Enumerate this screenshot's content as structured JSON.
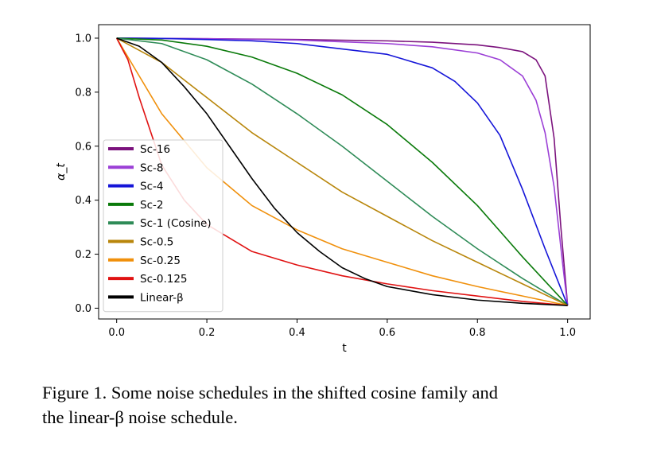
{
  "chart_data": {
    "type": "line",
    "xlabel": "t",
    "ylabel": "α_t",
    "xlim": [
      -0.04,
      1.05
    ],
    "ylim": [
      -0.04,
      1.05
    ],
    "xticks": [
      "0.0",
      "0.2",
      "0.4",
      "0.6",
      "0.8",
      "1.0"
    ],
    "yticks": [
      "0.0",
      "0.2",
      "0.4",
      "0.6",
      "0.8",
      "1.0"
    ],
    "grid": false,
    "legend_position": "lower-left",
    "series": [
      {
        "name": "Sc-16",
        "color": "#7b127d",
        "x": [
          0,
          0.2,
          0.4,
          0.6,
          0.7,
          0.8,
          0.85,
          0.9,
          0.93,
          0.95,
          0.97,
          0.985,
          1.0
        ],
        "y": [
          1.0,
          0.998,
          0.995,
          0.99,
          0.985,
          0.975,
          0.965,
          0.95,
          0.92,
          0.86,
          0.63,
          0.3,
          0.01
        ]
      },
      {
        "name": "Sc-8",
        "color": "#9b3fd6",
        "x": [
          0,
          0.2,
          0.4,
          0.6,
          0.7,
          0.8,
          0.85,
          0.9,
          0.93,
          0.95,
          0.97,
          0.99,
          1.0
        ],
        "y": [
          1.0,
          0.998,
          0.993,
          0.98,
          0.968,
          0.945,
          0.92,
          0.86,
          0.77,
          0.65,
          0.45,
          0.15,
          0.01
        ]
      },
      {
        "name": "Sc-4",
        "color": "#1515d8",
        "x": [
          0,
          0.1,
          0.2,
          0.3,
          0.4,
          0.5,
          0.6,
          0.7,
          0.75,
          0.8,
          0.85,
          0.9,
          0.95,
          1.0
        ],
        "y": [
          1.0,
          0.999,
          0.995,
          0.99,
          0.98,
          0.96,
          0.94,
          0.89,
          0.84,
          0.76,
          0.64,
          0.44,
          0.22,
          0.01
        ]
      },
      {
        "name": "Sc-2",
        "color": "#0a7a0a",
        "x": [
          0,
          0.1,
          0.2,
          0.3,
          0.4,
          0.5,
          0.6,
          0.7,
          0.8,
          0.9,
          1.0
        ],
        "y": [
          1.0,
          0.993,
          0.97,
          0.93,
          0.87,
          0.79,
          0.68,
          0.54,
          0.38,
          0.19,
          0.01
        ]
      },
      {
        "name": "Sc-1 (Cosine)",
        "color": "#2e8b57",
        "x": [
          0,
          0.1,
          0.2,
          0.3,
          0.4,
          0.5,
          0.6,
          0.7,
          0.8,
          0.9,
          1.0
        ],
        "y": [
          1.0,
          0.98,
          0.92,
          0.83,
          0.72,
          0.6,
          0.47,
          0.34,
          0.22,
          0.11,
          0.01
        ]
      },
      {
        "name": "Sc-0.5",
        "color": "#b8860b",
        "x": [
          0,
          0.1,
          0.2,
          0.3,
          0.4,
          0.5,
          0.6,
          0.7,
          0.8,
          0.9,
          1.0
        ],
        "y": [
          1.0,
          0.91,
          0.78,
          0.65,
          0.54,
          0.43,
          0.34,
          0.25,
          0.17,
          0.09,
          0.01
        ]
      },
      {
        "name": "Sc-0.25",
        "color": "#f0900c",
        "x": [
          0,
          0.05,
          0.1,
          0.2,
          0.3,
          0.4,
          0.5,
          0.6,
          0.7,
          0.8,
          0.9,
          1.0
        ],
        "y": [
          1.0,
          0.86,
          0.72,
          0.52,
          0.38,
          0.29,
          0.22,
          0.17,
          0.12,
          0.08,
          0.045,
          0.01
        ]
      },
      {
        "name": "Sc-0.125",
        "color": "#e01212",
        "x": [
          0,
          0.025,
          0.05,
          0.1,
          0.15,
          0.2,
          0.3,
          0.4,
          0.5,
          0.6,
          0.7,
          0.8,
          0.9,
          1.0
        ],
        "y": [
          1.0,
          0.92,
          0.78,
          0.53,
          0.4,
          0.31,
          0.21,
          0.16,
          0.12,
          0.09,
          0.065,
          0.045,
          0.025,
          0.01
        ]
      },
      {
        "name": "Linear-β",
        "color": "#000000",
        "x": [
          0,
          0.05,
          0.1,
          0.15,
          0.2,
          0.25,
          0.3,
          0.35,
          0.4,
          0.45,
          0.5,
          0.55,
          0.6,
          0.7,
          0.8,
          0.9,
          1.0
        ],
        "y": [
          1.0,
          0.97,
          0.91,
          0.82,
          0.72,
          0.6,
          0.48,
          0.37,
          0.28,
          0.21,
          0.15,
          0.11,
          0.08,
          0.05,
          0.03,
          0.018,
          0.01
        ]
      }
    ]
  },
  "caption": {
    "line1": "Figure 1.  Some noise schedules in the shifted cosine family and",
    "line2": "the linear-β noise schedule."
  }
}
